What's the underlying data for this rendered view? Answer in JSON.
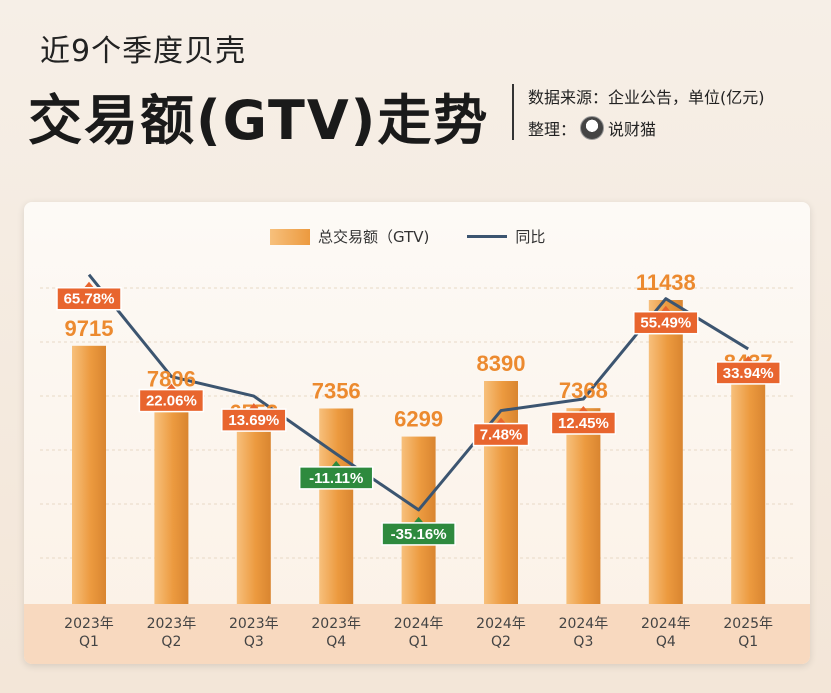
{
  "header": {
    "subtitle": "近9个季度贝壳",
    "title": "交易额(GTV)走势",
    "source": "数据来源：企业公告，单位(亿元)",
    "credit_label": "整理：",
    "credit_name": "说财猫"
  },
  "colors": {
    "bar_light": "#f7c07c",
    "bar_dark": "#ec9a3f",
    "line": "#3c5570",
    "positive_tag": "#e8652e",
    "negative_tag": "#2e8a3e",
    "value_text": "#ec8a2f"
  },
  "chart_data": {
    "type": "bar",
    "legend": [
      "总交易额（GTV)",
      "同比"
    ],
    "categories": [
      [
        "2023年",
        "Q1"
      ],
      [
        "2023年",
        "Q2"
      ],
      [
        "2023年",
        "Q3"
      ],
      [
        "2023年",
        "Q4"
      ],
      [
        "2024年",
        "Q1"
      ],
      [
        "2024年",
        "Q2"
      ],
      [
        "2024年",
        "Q3"
      ],
      [
        "2024年",
        "Q4"
      ],
      [
        "2025年",
        "Q1"
      ]
    ],
    "series": [
      {
        "name": "总交易额（GTV)",
        "values": [
          9715,
          7806,
          6552,
          7356,
          6299,
          8390,
          7368,
          11438,
          8437
        ]
      },
      {
        "name": "同比",
        "values": [
          65.78,
          22.06,
          13.69,
          -11.11,
          -35.16,
          7.48,
          12.45,
          55.49,
          33.94
        ],
        "labels": [
          "65.78%",
          "22.06%",
          "13.69%",
          "-11.11%",
          "-35.16%",
          "7.48%",
          "12.45%",
          "55.49%",
          "33.94%"
        ]
      }
    ]
  }
}
